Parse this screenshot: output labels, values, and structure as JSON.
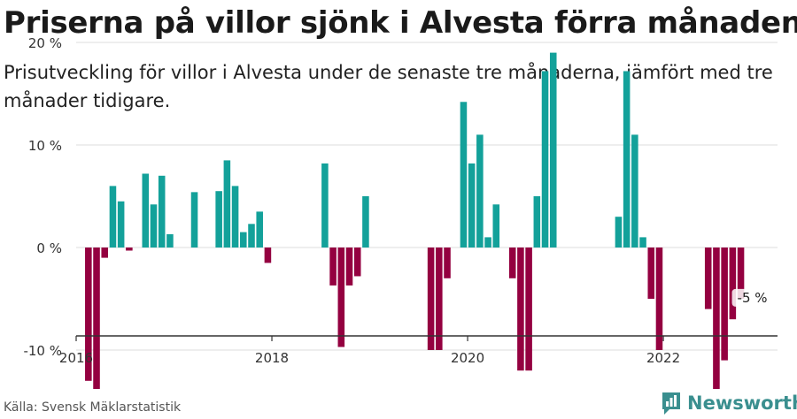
{
  "header": {
    "title": "Priserna på villor sjönk i Alvesta förra månaden",
    "subtitle": "Prisutveckling för villor i Alvesta under de senaste tre månaderna, jämfört med tre månader tidigare."
  },
  "footer": {
    "source": "Källa: Svensk Mäklarstatistik",
    "brand": "Newsworthy"
  },
  "colors": {
    "positive": "#13a19a",
    "negative": "#940040",
    "grid": "#dddddd",
    "axis": "#333333",
    "brand": "#3a8f8f"
  },
  "icons": {
    "logo": "bar-chart-speech-bubble-icon"
  },
  "chart_data": {
    "type": "bar",
    "title": "",
    "xlabel": "",
    "ylabel": "",
    "ylim": [
      -17,
      22
    ],
    "yticks": [
      -10,
      0,
      10,
      20
    ],
    "ytick_labels": [
      "-10 %",
      "0 %",
      "10 %",
      "20 %"
    ],
    "xticks": [
      "2016",
      "2018",
      "2020",
      "2022"
    ],
    "x_start": "2016-01",
    "x_end": "2023-03",
    "grid": true,
    "annotation": {
      "month": "2022-10",
      "text": "-5 %"
    },
    "series": [
      {
        "values": [
          [
            "2016-02",
            -13
          ],
          [
            "2016-03",
            -14.5
          ],
          [
            "2016-04",
            -1
          ],
          [
            "2016-05",
            6
          ],
          [
            "2016-06",
            4.5
          ],
          [
            "2016-07",
            -0.3
          ],
          [
            "2016-09",
            7.2
          ],
          [
            "2016-10",
            4.2
          ],
          [
            "2016-11",
            7
          ],
          [
            "2016-12",
            1.3
          ],
          [
            "2017-03",
            5.4
          ],
          [
            "2017-06",
            5.5
          ],
          [
            "2017-07",
            8.5
          ],
          [
            "2017-08",
            6
          ],
          [
            "2017-09",
            1.5
          ],
          [
            "2017-10",
            2.3
          ],
          [
            "2017-11",
            3.5
          ],
          [
            "2017-12",
            -1.5
          ],
          [
            "2018-07",
            8.2
          ],
          [
            "2018-08",
            -3.7
          ],
          [
            "2018-09",
            -9.7
          ],
          [
            "2018-10",
            -3.7
          ],
          [
            "2018-11",
            -2.8
          ],
          [
            "2018-12",
            5
          ],
          [
            "2019-08",
            -10
          ],
          [
            "2019-09",
            -10
          ],
          [
            "2019-10",
            -3
          ],
          [
            "2019-12",
            14.2
          ],
          [
            "2020-01",
            8.2
          ],
          [
            "2020-02",
            11
          ],
          [
            "2020-03",
            1
          ],
          [
            "2020-04",
            4.2
          ],
          [
            "2020-06",
            -3
          ],
          [
            "2020-07",
            -12
          ],
          [
            "2020-08",
            -12
          ],
          [
            "2020-09",
            5
          ],
          [
            "2020-10",
            17.2
          ],
          [
            "2020-11",
            19
          ],
          [
            "2021-07",
            3
          ],
          [
            "2021-08",
            17.2
          ],
          [
            "2021-09",
            11
          ],
          [
            "2021-10",
            1
          ],
          [
            "2021-11",
            -5
          ],
          [
            "2021-12",
            -10
          ],
          [
            "2022-06",
            -6
          ],
          [
            "2022-07",
            -15
          ],
          [
            "2022-08",
            -11
          ],
          [
            "2022-09",
            -7
          ],
          [
            "2022-10",
            -5
          ]
        ]
      }
    ]
  }
}
